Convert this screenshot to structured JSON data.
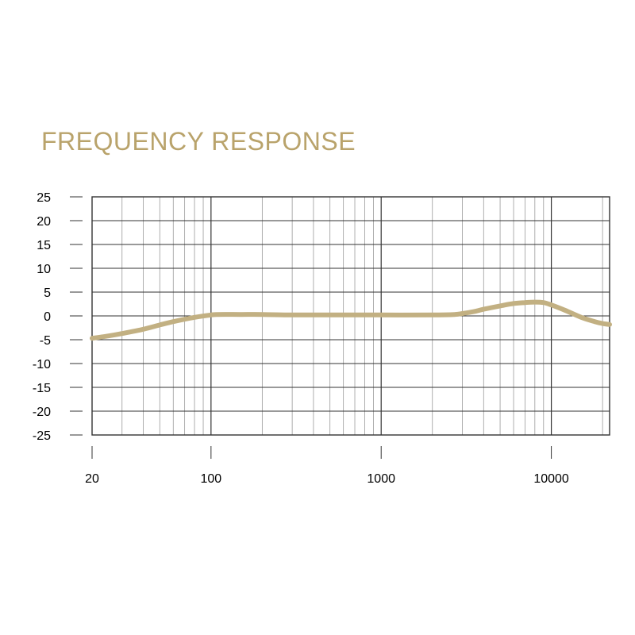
{
  "chart_data": {
    "type": "line",
    "title": "FREQUENCY RESPONSE",
    "xlabel": "",
    "ylabel": "",
    "x_scale": "log",
    "xlim": [
      20,
      22000
    ],
    "ylim": [
      -25,
      25
    ],
    "x_ticks": [
      20,
      100,
      1000,
      10000
    ],
    "y_ticks": [
      25,
      20,
      15,
      10,
      5,
      0,
      -5,
      -10,
      -15,
      -20,
      -25
    ],
    "grid": true,
    "series": [
      {
        "x": [
          20,
          25,
          30,
          40,
          50,
          60,
          80,
          100,
          110,
          150,
          200,
          300,
          500,
          1000,
          2000,
          2700,
          3000,
          3500,
          4000,
          5000,
          6000,
          7000,
          8000,
          9000,
          10000,
          12000,
          15000,
          18000,
          20000,
          22000
        ],
        "y": [
          -4.7,
          -4.2,
          -3.7,
          -2.8,
          -1.9,
          -1.2,
          -0.3,
          0.2,
          0.3,
          0.3,
          0.3,
          0.2,
          0.2,
          0.2,
          0.2,
          0.3,
          0.5,
          0.9,
          1.4,
          2.1,
          2.6,
          2.8,
          2.9,
          2.8,
          2.3,
          1.2,
          -0.3,
          -1.2,
          -1.6,
          -1.8
        ]
      }
    ],
    "colors": {
      "curve": "#c2b082",
      "title": "#b9a36b",
      "grid_major": "#333333",
      "grid_minor": "#9a9a9a",
      "axis_text": "#000000"
    }
  }
}
